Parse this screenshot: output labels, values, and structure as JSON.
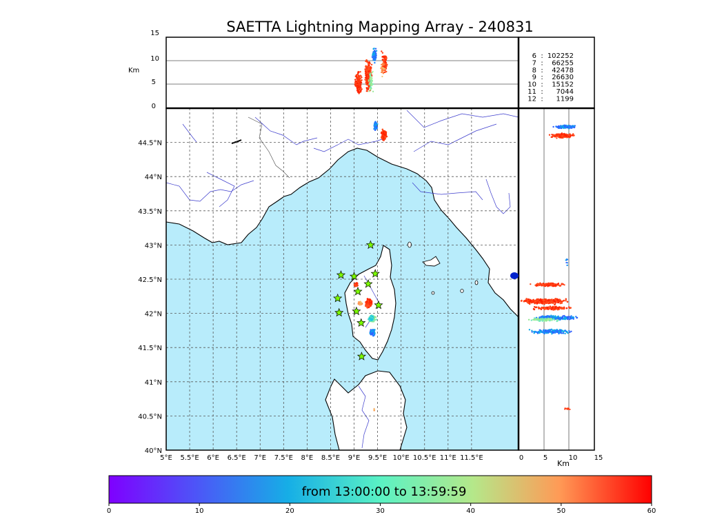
{
  "title": "SAETTA Lightning Mapping Array - 240831",
  "colors": {
    "sea": "#b8ecfb",
    "land": "#ffffff",
    "star_fill": "#7cfc00",
    "highlight_text": "#dd0000"
  },
  "map": {
    "lon_range": [
      5,
      12.5
    ],
    "lat_range": [
      40,
      45
    ],
    "lon_ticks": [
      "5°E",
      "5.5°E",
      "6°E",
      "6.5°E",
      "7°E",
      "7.5°E",
      "8°E",
      "8.5°E",
      "9°E",
      "9.5°E",
      "10°E",
      "10.5°E",
      "11°E",
      "11.5°E"
    ],
    "lat_ticks": [
      "40°N",
      "40.5°N",
      "41°N",
      "41.5°N",
      "42°N",
      "42.5°N",
      "43°N",
      "43.5°N",
      "44°N",
      "44.5°N"
    ]
  },
  "alt_panel": {
    "ylabel": "Km",
    "ticks": [
      "0",
      "5",
      "10",
      "15"
    ],
    "range": [
      0,
      15
    ]
  },
  "side_panel": {
    "xlabel": "Km",
    "ticks": [
      "0",
      "5",
      "10",
      "15"
    ]
  },
  "stats": [
    {
      "n": "6",
      "count": "102252",
      "highlight": false
    },
    {
      "n": "7",
      "count": "66255",
      "highlight": true
    },
    {
      "n": "8",
      "count": "42478",
      "highlight": false
    },
    {
      "n": "9",
      "count": "26630",
      "highlight": false
    },
    {
      "n": "10",
      "count": "15152",
      "highlight": false
    },
    {
      "n": "11",
      "count": "7044",
      "highlight": false
    },
    {
      "n": "12",
      "count": "1199",
      "highlight": false
    }
  ],
  "stations": [
    {
      "lon": 9.35,
      "lat": 43.0
    },
    {
      "lon": 8.72,
      "lat": 42.56
    },
    {
      "lon": 9.0,
      "lat": 42.54
    },
    {
      "lon": 9.45,
      "lat": 42.58
    },
    {
      "lon": 9.3,
      "lat": 42.43
    },
    {
      "lon": 9.08,
      "lat": 42.32
    },
    {
      "lon": 8.65,
      "lat": 42.22
    },
    {
      "lon": 9.52,
      "lat": 42.12
    },
    {
      "lon": 8.68,
      "lat": 42.01
    },
    {
      "lon": 9.05,
      "lat": 42.03
    },
    {
      "lon": 9.15,
      "lat": 41.86
    },
    {
      "lon": 9.16,
      "lat": 41.37
    }
  ],
  "colorbar": {
    "caption": "from 13:00:00 to 13:59:59",
    "ticks": [
      "0",
      "10",
      "20",
      "30",
      "40",
      "50",
      "60"
    ],
    "range": [
      0,
      60
    ]
  }
}
